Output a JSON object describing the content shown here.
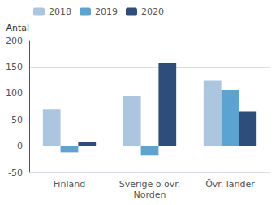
{
  "chart_data": {
    "type": "bar",
    "ylabel": "Antal",
    "categories": [
      "Finland",
      "Sverige o övr.\nNorden",
      "Övr. länder"
    ],
    "series": [
      {
        "name": "2018",
        "color": "#adc6e0",
        "values": [
          70,
          95,
          125
        ]
      },
      {
        "name": "2019",
        "color": "#5ba3d0",
        "values": [
          -12,
          -18,
          106
        ]
      },
      {
        "name": "2020",
        "color": "#2e4d7b",
        "values": [
          8,
          157,
          65
        ]
      }
    ],
    "ylim": [
      -50,
      200
    ],
    "yticks": [
      -50,
      0,
      50,
      100,
      150,
      200
    ],
    "grid": true,
    "legend": "upper left"
  }
}
